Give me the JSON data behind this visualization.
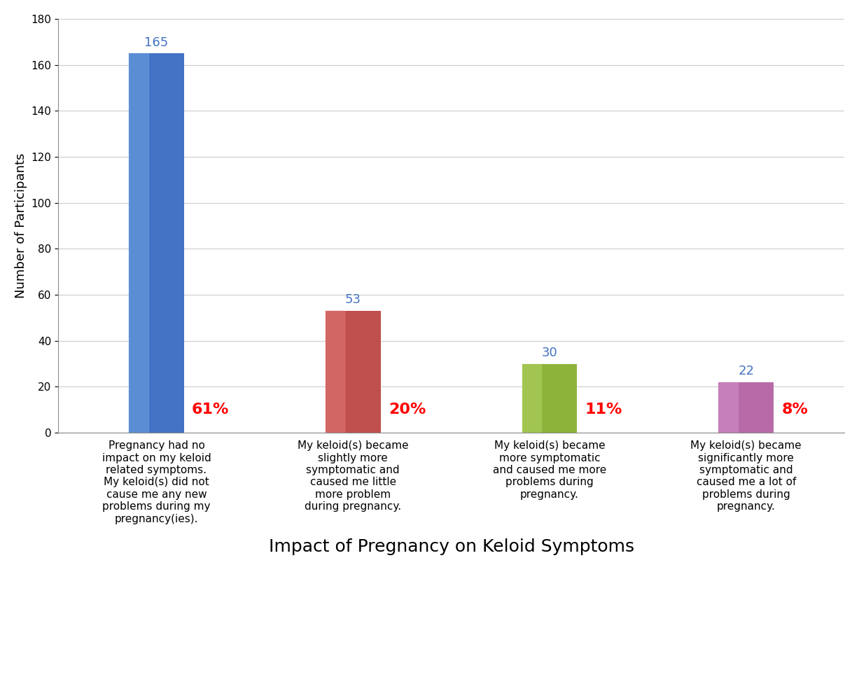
{
  "categories": [
    "Pregnancy had no\nimpact on my keloid\nrelated symptoms.\nMy keloid(s) did not\ncause me any new\nproblems during my\npregnancy(ies).",
    "My keloid(s) became\nslightly more\nsymptomatic and\ncaused me little\nmore problem\nduring pregnancy.",
    "My keloid(s) became\nmore symptomatic\nand caused me more\nproblems during\npregnancy.",
    "My keloid(s) became\nsignificantly more\nsymptomatic and\ncaused me a lot of\nproblems during\npregnancy."
  ],
  "values": [
    165,
    53,
    30,
    22
  ],
  "percentages": [
    "61%",
    "20%",
    "11%",
    "8%"
  ],
  "bar_colors": [
    "#4472C4",
    "#C0504D",
    "#8DB33A",
    "#B86AA8"
  ],
  "bar_highlight_colors": [
    "#6699DD",
    "#D97070",
    "#AACE5A",
    "#CC88C0"
  ],
  "value_label_color": "#4472C4",
  "pct_label_color": "#FF0000",
  "title": "Impact of Pregnancy on Keloid Symptoms",
  "ylabel": "Number of Participants",
  "ylim": [
    0,
    180
  ],
  "yticks": [
    0,
    20,
    40,
    60,
    80,
    100,
    120,
    140,
    160,
    180
  ],
  "background_color": "#FFFFFF",
  "grid_color": "#CCCCCC",
  "title_fontsize": 18,
  "axis_label_fontsize": 13,
  "tick_label_fontsize": 11,
  "value_fontsize": 13,
  "pct_fontsize": 16,
  "bar_width": 0.28,
  "x_positions": [
    0.5,
    1.5,
    2.5,
    3.5
  ],
  "xlim": [
    0,
    4.0
  ]
}
